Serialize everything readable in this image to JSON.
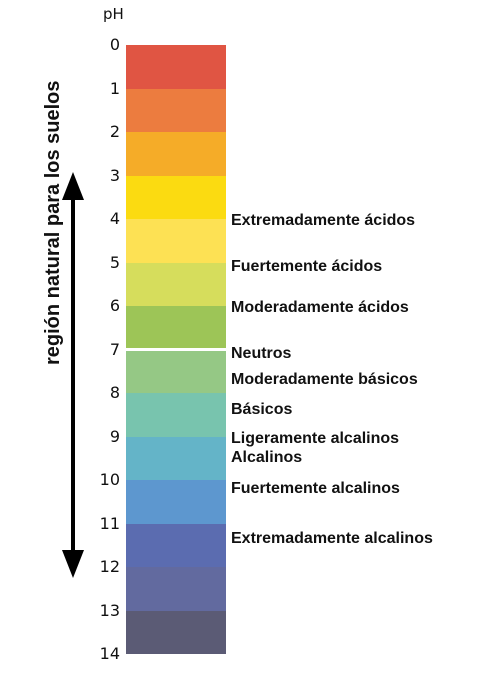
{
  "scale": {
    "title": "pH",
    "ticks": [
      "0",
      "1",
      "2",
      "3",
      "4",
      "5",
      "6",
      "7",
      "8",
      "9",
      "10",
      "11",
      "12",
      "13",
      "14"
    ],
    "bands": [
      {
        "value": 0,
        "color": "#e05543"
      },
      {
        "value": 1,
        "color": "#ec7c3f"
      },
      {
        "value": 2,
        "color": "#f5ac28"
      },
      {
        "value": 3,
        "color": "#fbdb11"
      },
      {
        "value": 4,
        "color": "#fde154"
      },
      {
        "value": 5,
        "color": "#d6dd5c"
      },
      {
        "value": 6,
        "color": "#9dc557"
      },
      {
        "value": 7,
        "color": "#95c885"
      },
      {
        "value": 8,
        "color": "#78c4ae"
      },
      {
        "value": 9,
        "color": "#64b4c8"
      },
      {
        "value": 10,
        "color": "#5d97cf"
      },
      {
        "value": 11,
        "color": "#5b6cb0"
      },
      {
        "value": 12,
        "color": "#626a9f"
      },
      {
        "value": 13,
        "color": "#5b5b75"
      }
    ]
  },
  "natural_range_label": "región natural para los suelos",
  "categories": [
    {
      "label": "Extremadamente ácidos",
      "ph": 4.0
    },
    {
      "label": "Fuertemente ácidos",
      "ph": 5.05
    },
    {
      "label": "Moderadamente ácidos",
      "ph": 6.0
    },
    {
      "label": "Neutros",
      "ph": 7.05
    },
    {
      "label": "Moderadamente básicos",
      "ph": 7.65
    },
    {
      "label": "Básicos",
      "ph": 8.35
    },
    {
      "label": "Ligeramente alcalinos",
      "ph": 9.0
    },
    {
      "label": "Alcalinos",
      "ph": 9.45
    },
    {
      "label": "Fuertemente alcalinos",
      "ph": 10.15
    },
    {
      "label": "Extremadamente alcalinos",
      "ph": 11.3
    }
  ]
}
